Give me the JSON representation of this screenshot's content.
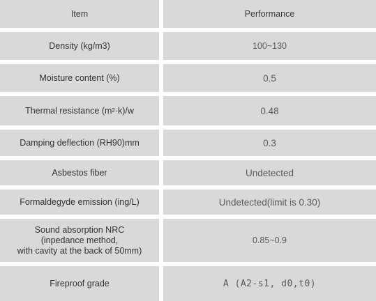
{
  "table": {
    "header": {
      "item": "Item",
      "performance": "Performance"
    },
    "rows": [
      {
        "item": "Density  (kg/m3)",
        "performance": "100~130"
      },
      {
        "item": "Moisture content  (%)",
        "performance": "0.5"
      },
      {
        "item_prefix": "Thermal resistance  (m",
        "item_sup": "2",
        "item_suffix": "·k)/w",
        "performance": "0.48"
      },
      {
        "item": "Damping deflection  (RH90)mm",
        "performance": "0.3"
      },
      {
        "item": "Asbestos fiber",
        "performance": "Undetected"
      },
      {
        "item": "Formaldegyde emission (ing/L)",
        "performance": "Undetected(limit is 0.30)"
      },
      {
        "item": "Sound absorption NRC\n(inpedance method,\nwith cavity at the back of 50mm)",
        "performance": "0.85~0.9"
      },
      {
        "item": "Fireproof grade",
        "performance": "A  (A2-s1, d0,t0)"
      }
    ]
  }
}
